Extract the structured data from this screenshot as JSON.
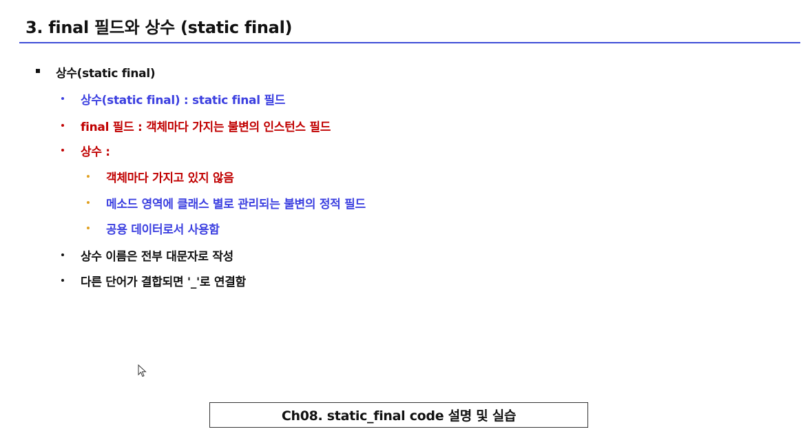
{
  "slide": {
    "title": "3. final 필드와 상수 (static final)"
  },
  "content": {
    "level1": "상수(static final)",
    "items": [
      {
        "text": "상수(static final) : static final 필드",
        "color": "#3b3fe0"
      },
      {
        "text": "final 필드 : 객체마다 가지는 불변의 인스턴스 필드",
        "color": "#c00000"
      },
      {
        "text": "상수 :",
        "color": "#c00000"
      }
    ],
    "subitems": [
      {
        "text": "객체마다 가지고 있지 않음",
        "color": "#c00000"
      },
      {
        "text": "메소드 영역에 클래스 별로 관리되는 불변의 정적 필드",
        "color": "#3b3fe0"
      },
      {
        "text": "공용 데이터로서 사용함",
        "color": "#3b3fe0"
      }
    ],
    "items2": [
      {
        "text": "상수 이름은 전부 대문자로 작성",
        "color": "#111111"
      },
      {
        "text": "다른 단어가 결합되면 '_'로 연결함",
        "color": "#111111"
      }
    ]
  },
  "footer": {
    "label": "Ch08. static_final code 설명 및 실습"
  },
  "colors": {
    "accent_rule": "#3d4bd6",
    "sub_bullet": "#e0a020"
  }
}
